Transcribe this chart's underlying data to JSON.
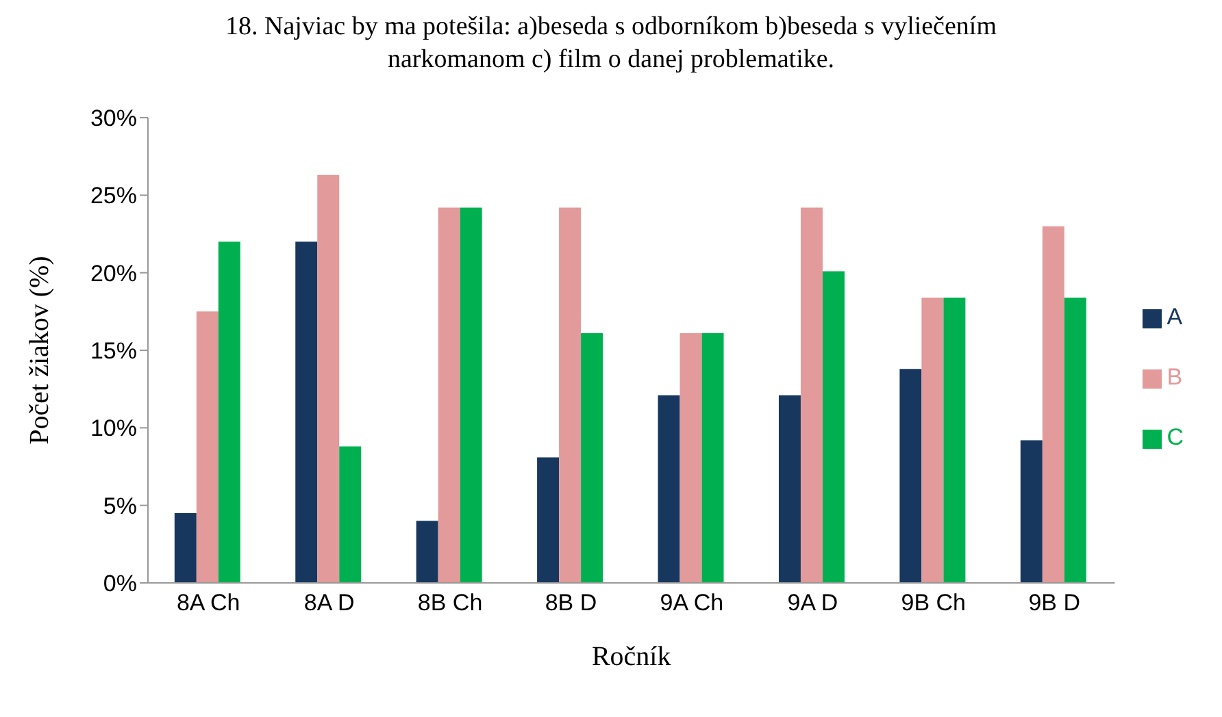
{
  "chart_data": {
    "type": "bar",
    "title": "18. Najviac by ma potešila: a)beseda s odborníkom b)beseda s vyliečením narkomanom c) film o danej problematike.",
    "xlabel": "Ročník",
    "ylabel": "Počet žiakov (%)",
    "categories": [
      "8A Ch",
      "8A D",
      "8B Ch",
      "8B D",
      "9A Ch",
      "9A D",
      "9B Ch",
      "9B D"
    ],
    "series": [
      {
        "name": "A",
        "color": "#17375e",
        "values": [
          4.5,
          22,
          4,
          8.1,
          12.1,
          12.1,
          13.8,
          9.2
        ]
      },
      {
        "name": "B",
        "color": "#e29a9a",
        "values": [
          17.5,
          26.3,
          24.2,
          24.2,
          16.1,
          24.2,
          18.4,
          23
        ]
      },
      {
        "name": "C",
        "color": "#00b050",
        "values": [
          22,
          8.8,
          24.2,
          16.1,
          16.1,
          20.1,
          18.4,
          18.4
        ]
      }
    ],
    "ylim": [
      0,
      30
    ],
    "yticks": [
      {
        "value": 0,
        "label": "0%"
      },
      {
        "value": 5,
        "label": "5%"
      },
      {
        "value": 10,
        "label": "10%"
      },
      {
        "value": 15,
        "label": "15%"
      },
      {
        "value": 20,
        "label": "20%"
      },
      {
        "value": 25,
        "label": "25%"
      },
      {
        "value": 30,
        "label": "30%"
      }
    ],
    "grid": false,
    "legend": "right"
  }
}
